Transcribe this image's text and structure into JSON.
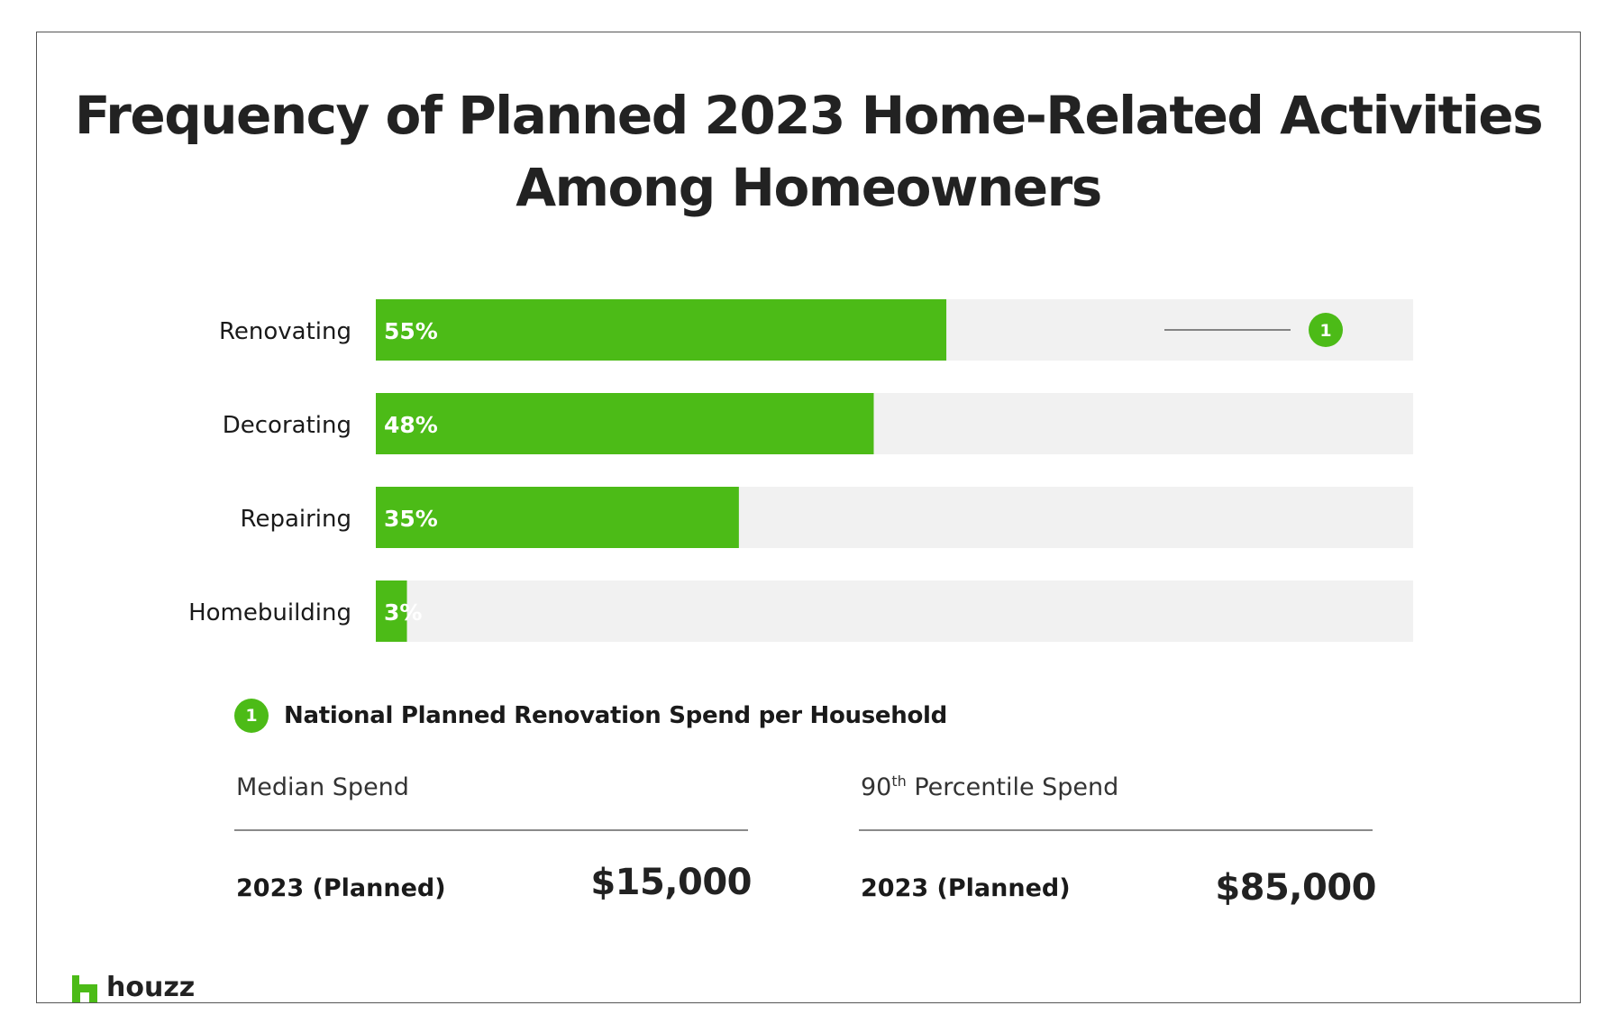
{
  "title": {
    "line1": "Frequency of Planned 2023 Home-Related Activities",
    "line2": "Among Homeowners"
  },
  "colors": {
    "bar": "#4cbb17",
    "track": "#f1f1f1",
    "accent": "#4cbb17",
    "text": "#222222"
  },
  "chart_data": {
    "type": "bar",
    "orientation": "horizontal",
    "categories": [
      "Renovating",
      "Decorating",
      "Repairing",
      "Homebuilding"
    ],
    "values": [
      55,
      48,
      35,
      3
    ],
    "data_labels": [
      "55%",
      "48%",
      "35%",
      "3%"
    ],
    "unit": "%",
    "xlim": [
      0,
      100
    ],
    "grid": false,
    "legend": "none",
    "annotation": {
      "category": "Renovating",
      "marker": "1"
    }
  },
  "footnote": {
    "marker": "1",
    "title": "National Planned Renovation Spend per Household"
  },
  "stats": [
    {
      "label": "Median Spend",
      "label_sup": "",
      "label_rest": "",
      "period": "2023 (Planned)",
      "value": "$15,000"
    },
    {
      "label": "90",
      "label_sup": "th",
      "label_rest": " Percentile Spend",
      "period": "2023 (Planned)",
      "value": "$85,000"
    }
  ],
  "brand": {
    "name": "houzz",
    "icon": "houzz-logo-icon"
  }
}
